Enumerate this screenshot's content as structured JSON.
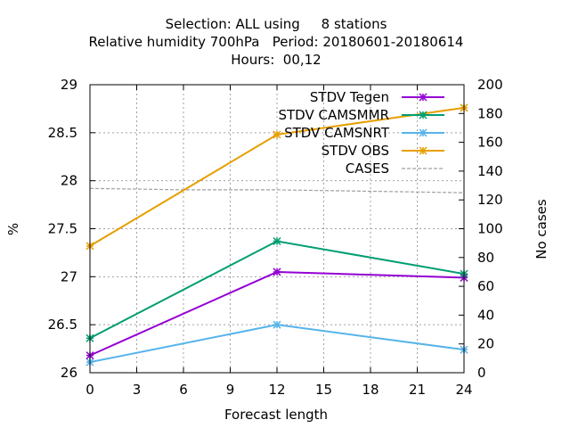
{
  "chart_data": {
    "type": "line",
    "title_lines": [
      "Selection: ALL using     8 stations",
      "Relative humidity 700hPa   Period: 20180601-20180614",
      "Hours:  00,12"
    ],
    "xlabel": "Forecast length",
    "ylabel": "%",
    "y2label": "No cases",
    "xlim": [
      0,
      24
    ],
    "ylim": [
      26,
      29
    ],
    "y2lim": [
      0,
      200
    ],
    "x_ticks": [
      0,
      3,
      6,
      9,
      12,
      15,
      18,
      21,
      24
    ],
    "y_ticks": [
      "26",
      "26.5",
      "27",
      "27.5",
      "28",
      "28.5",
      "29"
    ],
    "y2_ticks": [
      "0",
      "20",
      "40",
      "60",
      "80",
      "100",
      "120",
      "140",
      "160",
      "180",
      "200"
    ],
    "grid": true,
    "legend_position": "top-right",
    "series": [
      {
        "name": "STDV Tegen",
        "color": "#9400d3",
        "axis": "left",
        "x": [
          0,
          12,
          24
        ],
        "values": [
          26.18,
          27.05,
          26.99
        ]
      },
      {
        "name": "STDV CAMSMMR",
        "color": "#009e73",
        "axis": "left",
        "x": [
          0,
          12,
          24
        ],
        "values": [
          26.36,
          27.37,
          27.03
        ]
      },
      {
        "name": "STDV CAMSNRT",
        "color": "#56b4e9",
        "axis": "left",
        "x": [
          0,
          12,
          24
        ],
        "values": [
          26.11,
          26.5,
          26.24
        ]
      },
      {
        "name": "STDV OBS",
        "color": "#e69f00",
        "axis": "left",
        "x": [
          0,
          12,
          24
        ],
        "values": [
          27.32,
          28.48,
          28.76
        ]
      },
      {
        "name": "CASES",
        "color": "#a0a0a0",
        "axis": "right",
        "dashed": true,
        "x": [
          0,
          6,
          12,
          18,
          24
        ],
        "values": [
          128,
          127,
          127,
          126,
          125
        ]
      }
    ]
  }
}
